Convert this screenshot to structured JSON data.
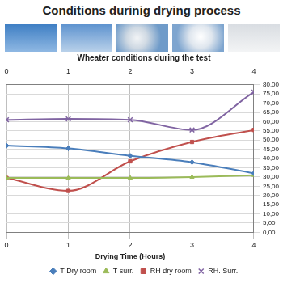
{
  "chart_data": {
    "type": "line",
    "title": "Conditions durinig drying process",
    "subtitle": "Wheater conditions during the test",
    "x_label": "Drying Time (Hours)",
    "x": [
      0,
      1,
      2,
      3,
      4
    ],
    "xlim": [
      0,
      4
    ],
    "xticks": [
      0,
      1,
      2,
      3,
      4
    ],
    "ylim": [
      0,
      80
    ],
    "yticks": [
      {
        "value": 0,
        "label": "0,00"
      },
      {
        "value": 5,
        "label": "5,00"
      },
      {
        "value": 10,
        "label": "10,00"
      },
      {
        "value": 15,
        "label": "15,00"
      },
      {
        "value": 20,
        "label": "20,00"
      },
      {
        "value": 25,
        "label": "25,00"
      },
      {
        "value": 30,
        "label": "30,00"
      },
      {
        "value": 35,
        "label": "35,00"
      },
      {
        "value": 40,
        "label": "40,00"
      },
      {
        "value": 45,
        "label": "45,00"
      },
      {
        "value": 50,
        "label": "50,00"
      },
      {
        "value": 55,
        "label": "55,00"
      },
      {
        "value": 60,
        "label": "60,00"
      },
      {
        "value": 65,
        "label": "65,00"
      },
      {
        "value": 70,
        "label": "70,00"
      },
      {
        "value": 75,
        "label": "75,00"
      },
      {
        "value": 80,
        "label": "80,00"
      }
    ],
    "grid": true,
    "legend": "bottom",
    "series": [
      {
        "name": "T Dry room",
        "color": "#4a7ebb",
        "marker": "diamond",
        "line_style": "solid",
        "values": [
          47,
          45.5,
          41.5,
          38,
          32
        ]
      },
      {
        "name": "T surr.",
        "color": "#9bbb59",
        "marker": "triangle",
        "line_style": "solid",
        "values": [
          29.5,
          29.5,
          29.5,
          30,
          31
        ]
      },
      {
        "name": "RH dry room",
        "color": "#c0504d",
        "marker": "square",
        "line_style": "solid",
        "values": [
          29.5,
          22.5,
          38.5,
          49,
          55.5
        ]
      },
      {
        "name": "RH. Surr.",
        "color": "#8064a2",
        "marker": "cross",
        "line_style": "solid",
        "values": [
          61,
          61.5,
          61,
          55.5,
          76
        ]
      }
    ]
  }
}
